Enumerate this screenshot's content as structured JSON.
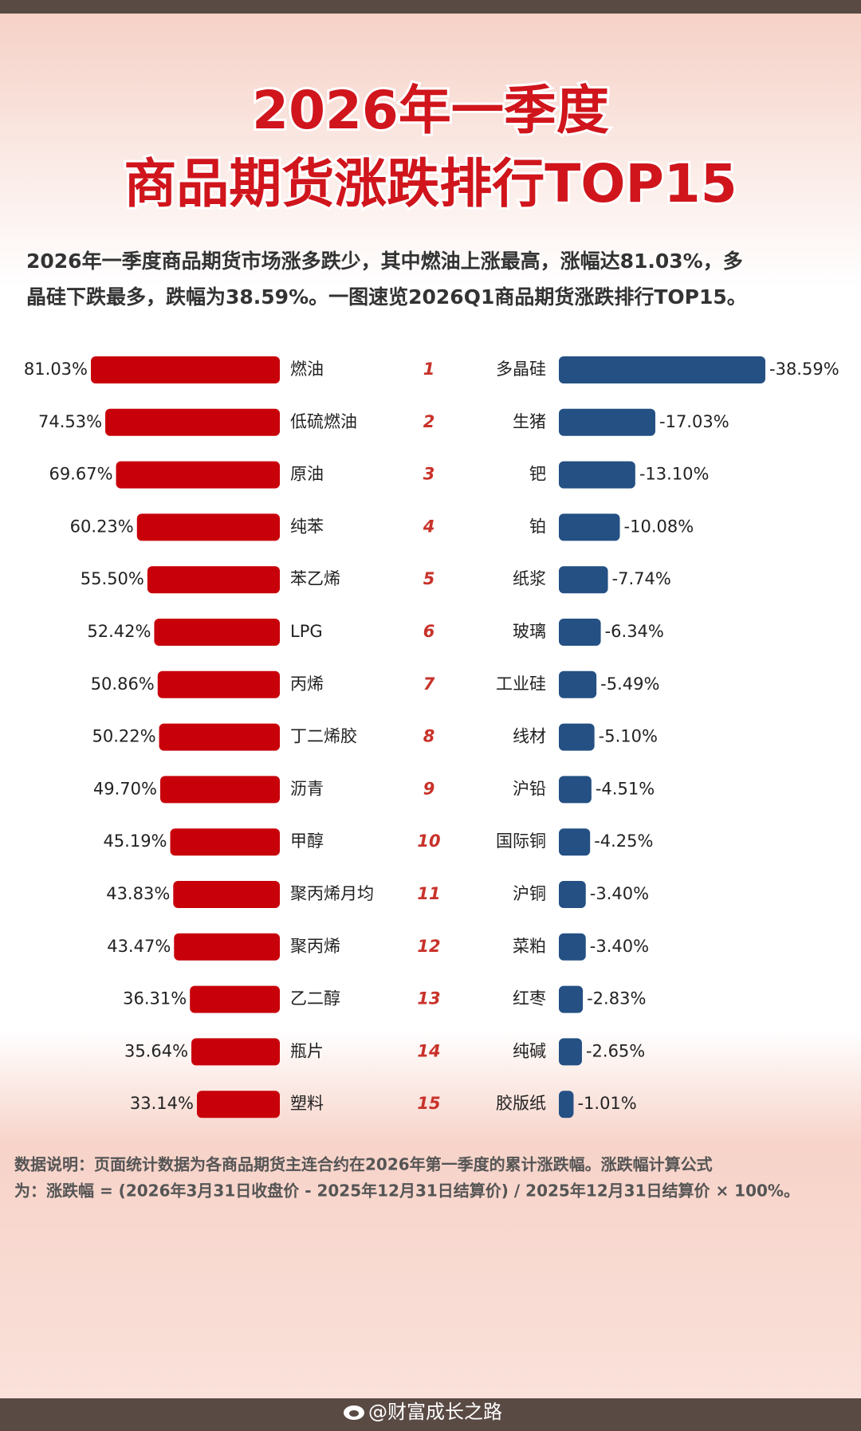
{
  "title": [
    "2026年一季度",
    "商品期货涨跌排行TOP15"
  ],
  "description": [
    "2026年一季度商品期货市场涨多跌少，其中燃油上涨最高，涨幅达81.03%，多",
    "晶硅下跌最多，跌幅为38.59%。一图速览2026Q1商品期货涨跌排行TOP15。"
  ],
  "ranks": [
    1,
    2,
    3,
    4,
    5,
    6,
    7,
    8,
    9,
    10,
    11,
    12,
    13,
    14,
    15
  ],
  "chart_data": [
    {
      "type": "bar",
      "direction": "leftward",
      "color": "#c8000a",
      "categories": [
        "燃油",
        "低硫燃油",
        "原油",
        "纯苯",
        "苯乙烯",
        "LPG",
        "丙烯",
        "丁二烯胶",
        "沥青",
        "甲醇",
        "聚丙烯月均",
        "聚丙烯",
        "乙二醇",
        "瓶片",
        "塑料"
      ],
      "values": [
        81.03,
        74.53,
        69.67,
        60.23,
        55.5,
        52.42,
        50.86,
        50.22,
        49.7,
        45.19,
        43.83,
        43.47,
        36.31,
        35.64,
        33.14
      ],
      "value_labels": [
        "81.03%",
        "74.53%",
        "69.67%",
        "60.23%",
        "55.50%",
        "52.42%",
        "50.86%",
        "50.22%",
        "49.70%",
        "45.19%",
        "43.83%",
        "43.47%",
        "36.31%",
        "35.64%",
        "33.14%"
      ]
    },
    {
      "type": "bar",
      "direction": "rightward",
      "color": "#245083",
      "categories": [
        "多晶硅",
        "生猪",
        "钯",
        "铂",
        "纸浆",
        "玻璃",
        "工业硅",
        "线材",
        "沪铅",
        "国际铜",
        "沪铜",
        "菜粕",
        "红枣",
        "纯碱",
        "胶版纸"
      ],
      "values": [
        -38.59,
        -17.03,
        -13.1,
        -10.08,
        -7.74,
        -6.34,
        -5.49,
        -5.1,
        -4.51,
        -4.25,
        -3.4,
        -3.4,
        -2.83,
        -2.65,
        -1.01
      ],
      "value_labels": [
        "-38.59%",
        "-17.03%",
        "-13.10%",
        "-10.08%",
        "-7.74%",
        "-6.34%",
        "-5.49%",
        "-5.10%",
        "-4.51%",
        "-4.25%",
        "-3.40%",
        "-3.40%",
        "-2.83%",
        "-2.65%",
        "-1.01%"
      ]
    }
  ],
  "footnote": [
    "数据说明：页面统计数据为各商品期货主连合约在2026年第一季度的累计涨跌幅。涨跌幅计算公式",
    "为：涨跌幅 = (2026年3月31日收盘价 - 2025年12月31日结算价) / 2025年12月31日结算价 × 100%。"
  ],
  "watermark": "@财富成长之路"
}
